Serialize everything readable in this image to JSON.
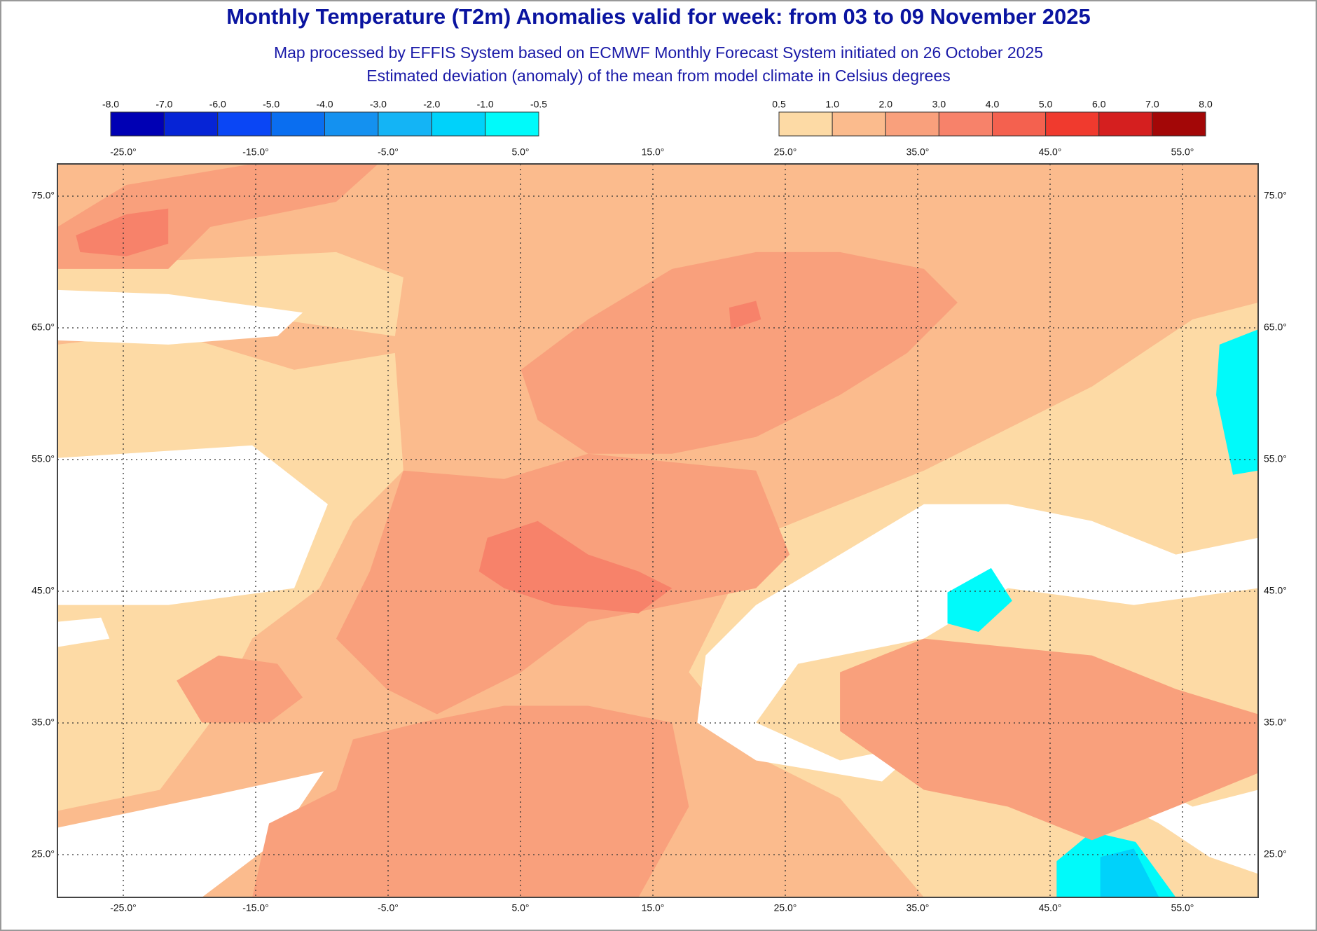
{
  "header": {
    "title": "Monthly Temperature (T2m) Anomalies valid for week: from 03 to 09 November 2025",
    "subtitle_1": "Map processed by EFFIS System based on ECMWF Monthly Forecast System initiated on 26 October 2025",
    "subtitle_2": "Estimated deviation (anomaly) of the mean from model climate in Celsius degrees"
  },
  "legend": {
    "negative": {
      "labels": [
        "-8.0",
        "-7.0",
        "-6.0",
        "-5.0",
        "-4.0",
        "-3.0",
        "-2.0",
        "-1.0",
        "-0.5"
      ],
      "colors": [
        "#0000b4",
        "#0624d6",
        "#0a46f5",
        "#0a6ef0",
        "#1491f0",
        "#14b4f5",
        "#00d2fa",
        "#00fafa"
      ]
    },
    "positive": {
      "labels": [
        "0.5",
        "1.0",
        "2.0",
        "3.0",
        "4.0",
        "5.0",
        "6.0",
        "7.0",
        "8.0"
      ],
      "colors": [
        "#fddaa5",
        "#fbbb8d",
        "#f9a07c",
        "#f7826a",
        "#f4614f",
        "#f03a2e",
        "#d51f1f",
        "#a30707"
      ]
    }
  },
  "axes": {
    "longitude_labels": [
      "-25.0°",
      "-15.0°",
      "-5.0°",
      "5.0°",
      "15.0°",
      "25.0°",
      "35.0°",
      "45.0°",
      "55.0°"
    ],
    "latitude_labels": [
      "75.0°",
      "65.0°",
      "55.0°",
      "45.0°",
      "35.0°",
      "25.0°"
    ]
  }
}
